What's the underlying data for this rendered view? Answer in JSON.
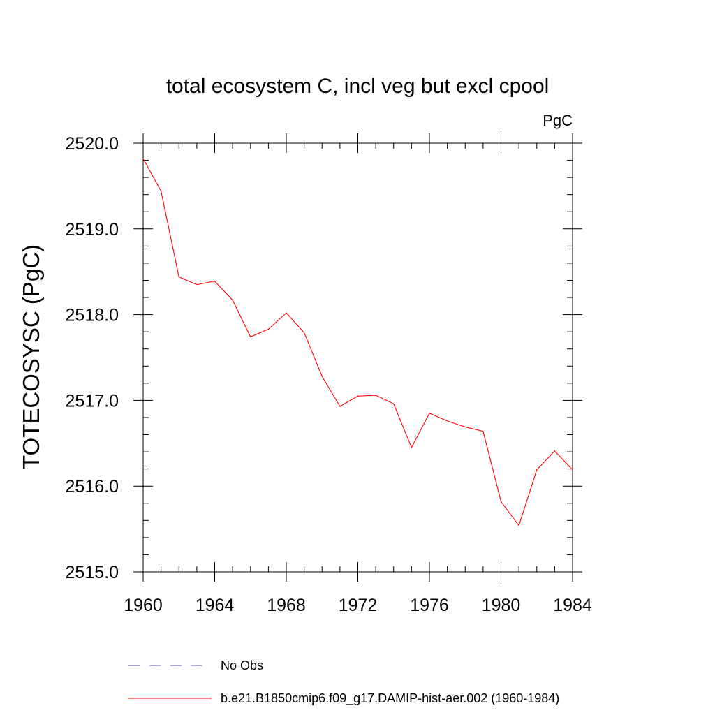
{
  "chart_data": {
    "type": "line",
    "title": "total ecosystem C, incl veg but excl cpool",
    "units_label": "PgC",
    "ylabel": "TOTECOSYSC  (PgC)",
    "xlabel": "",
    "xlim": [
      1960,
      1984
    ],
    "ylim": [
      2515.0,
      2520.0
    ],
    "x_major_ticks": [
      1960,
      1964,
      1968,
      1972,
      1976,
      1980,
      1984
    ],
    "y_major_ticks": [
      2515.0,
      2516.0,
      2517.0,
      2518.0,
      2519.0,
      2520.0
    ],
    "y_tick_labels": [
      "2515.0",
      "2516.0",
      "2517.0",
      "2518.0",
      "2519.0",
      "2520.0"
    ],
    "x_minor_step": 1,
    "y_minor_step": 0.2,
    "grid": false,
    "legend_position": "bottom",
    "legend": [
      {
        "name": "No Obs",
        "color": "#4b4bb0",
        "style": "dashed"
      },
      {
        "name": "b.e21.B1850cmip6.f09_g17.DAMIP-hist-aer.002 (1960-1984)",
        "color": "#ff0000",
        "style": "solid"
      }
    ],
    "series": [
      {
        "name": "b.e21.B1850cmip6.f09_g17.DAMIP-hist-aer.002 (1960-1984)",
        "color": "#ff0000",
        "x": [
          1960,
          1961,
          1962,
          1963,
          1964,
          1965,
          1966,
          1967,
          1968,
          1969,
          1970,
          1971,
          1972,
          1973,
          1974,
          1975,
          1976,
          1977,
          1978,
          1979,
          1980,
          1981,
          1982,
          1983,
          1984
        ],
        "values": [
          2519.82,
          2519.44,
          2518.44,
          2518.35,
          2518.39,
          2518.17,
          2517.74,
          2517.83,
          2518.02,
          2517.79,
          2517.28,
          2516.93,
          2517.05,
          2517.06,
          2516.96,
          2516.45,
          2516.85,
          2516.76,
          2516.69,
          2516.64,
          2515.82,
          2515.54,
          2516.19,
          2516.41,
          2516.19
        ]
      }
    ]
  }
}
